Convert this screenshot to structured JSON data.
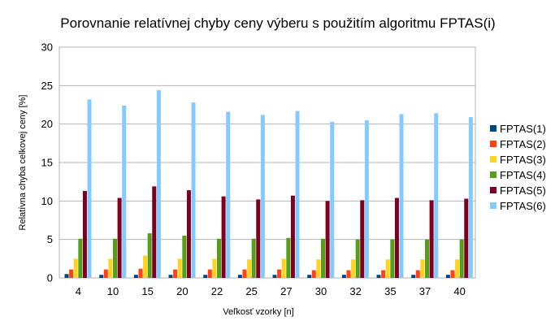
{
  "chart_data": {
    "type": "bar",
    "title": "Porovnanie relatívnej chyby ceny výberu s použitím algoritmu FPTAS(i)",
    "xlabel": "Veľkosť vzorky [n]",
    "ylabel": "Relatívna chyba celkovej ceny [%]",
    "ylim": [
      0,
      30
    ],
    "yticks": [
      "0",
      "5",
      "10",
      "15",
      "20",
      "25",
      "30"
    ],
    "grid": "horizontal",
    "legend_position": "right",
    "categories": [
      "4",
      "10",
      "15",
      "20",
      "22",
      "25",
      "27",
      "30",
      "32",
      "35",
      "37",
      "40"
    ],
    "series": [
      {
        "name": "FPTAS(1)",
        "color": "#004586",
        "values": [
          0.5,
          0.4,
          0.4,
          0.4,
          0.4,
          0.4,
          0.4,
          0.4,
          0.4,
          0.4,
          0.4,
          0.4
        ]
      },
      {
        "name": "FPTAS(2)",
        "color": "#ff420e",
        "values": [
          1.1,
          1.1,
          1.2,
          1.1,
          1.1,
          1.1,
          1.1,
          1.0,
          1.0,
          1.0,
          1.0,
          1.0
        ]
      },
      {
        "name": "FPTAS(3)",
        "color": "#ffd320",
        "values": [
          2.5,
          2.5,
          2.9,
          2.5,
          2.5,
          2.4,
          2.5,
          2.4,
          2.4,
          2.4,
          2.4,
          2.4
        ]
      },
      {
        "name": "FPTAS(4)",
        "color": "#579d1c",
        "values": [
          5.1,
          5.1,
          5.8,
          5.5,
          5.1,
          5.1,
          5.2,
          5.1,
          5.0,
          5.0,
          5.0,
          5.0
        ]
      },
      {
        "name": "FPTAS(5)",
        "color": "#7e0021",
        "values": [
          11.3,
          10.4,
          11.9,
          11.4,
          10.6,
          10.2,
          10.7,
          10.0,
          10.1,
          10.4,
          10.1,
          10.3
        ]
      },
      {
        "name": "FPTAS(6)",
        "color": "#83caff",
        "values": [
          23.2,
          22.4,
          24.4,
          22.8,
          21.6,
          21.2,
          21.7,
          20.3,
          20.5,
          21.3,
          21.4,
          20.9
        ]
      }
    ]
  }
}
